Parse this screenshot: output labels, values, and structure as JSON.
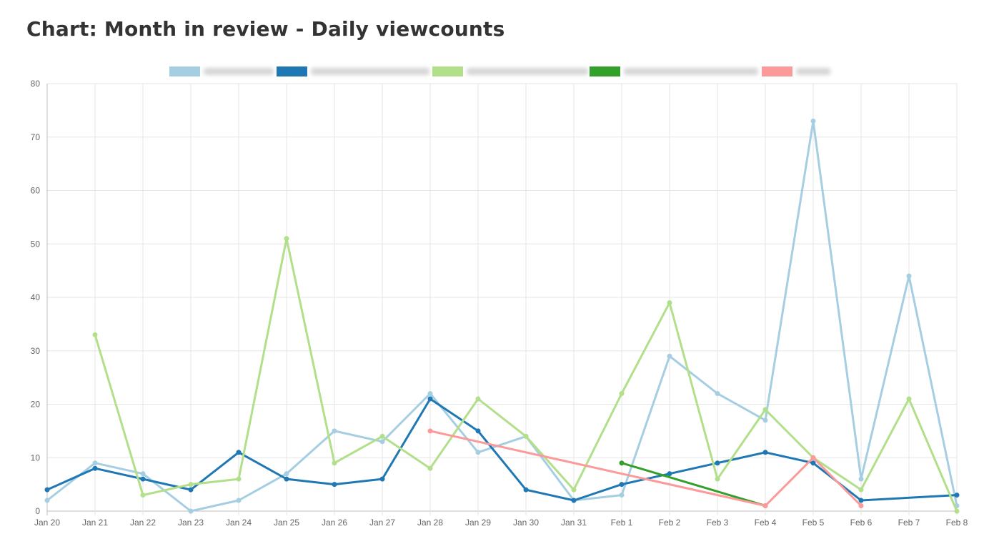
{
  "page": {
    "title": "Chart: Month in review - Daily viewcounts"
  },
  "chart_data": {
    "type": "line",
    "title": "Chart: Month in review - Daily viewcounts",
    "xlabel": "",
    "ylabel": "",
    "ylim": [
      0,
      80
    ],
    "y_ticks": [
      0,
      10,
      20,
      30,
      40,
      50,
      60,
      70,
      80
    ],
    "grid": true,
    "legend_position": "top-center",
    "categories": [
      "Jan 20",
      "Jan 21",
      "Jan 22",
      "Jan 23",
      "Jan 24",
      "Jan 25",
      "Jan 26",
      "Jan 27",
      "Jan 28",
      "Jan 29",
      "Jan 30",
      "Jan 31",
      "Feb 1",
      "Feb 2",
      "Feb 3",
      "Feb 4",
      "Feb 5",
      "Feb 6",
      "Feb 7",
      "Feb 8"
    ],
    "series": [
      {
        "color": "#a6cee3",
        "values": [
          2,
          9,
          7,
          0,
          2,
          7,
          15,
          13,
          22,
          11,
          14,
          2,
          3,
          29,
          22,
          17,
          73,
          6,
          44,
          1
        ]
      },
      {
        "color": "#1f78b4",
        "values": [
          4,
          8,
          6,
          4,
          11,
          6,
          5,
          6,
          21,
          15,
          4,
          2,
          5,
          7,
          9,
          11,
          9,
          2,
          null,
          3
        ]
      },
      {
        "color": "#b2df8a",
        "values": [
          null,
          33,
          3,
          5,
          6,
          51,
          9,
          14,
          8,
          21,
          14,
          4,
          22,
          39,
          6,
          19,
          10,
          4,
          21,
          0
        ]
      },
      {
        "color": "#33a02c",
        "values": [
          null,
          null,
          null,
          null,
          null,
          null,
          null,
          null,
          null,
          null,
          null,
          null,
          9,
          null,
          null,
          1,
          null,
          null,
          null,
          null
        ]
      },
      {
        "color": "#fb9a99",
        "values": [
          null,
          null,
          null,
          null,
          null,
          null,
          null,
          null,
          15,
          null,
          null,
          null,
          null,
          null,
          null,
          1,
          10,
          1,
          null,
          null
        ]
      }
    ]
  }
}
